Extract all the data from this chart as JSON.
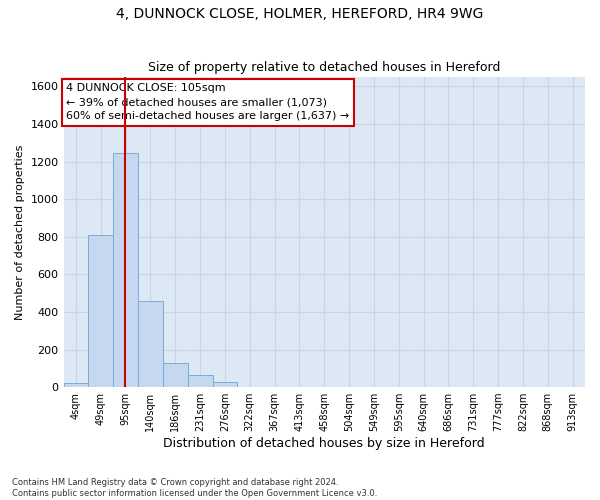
{
  "title_line1": "4, DUNNOCK CLOSE, HOLMER, HEREFORD, HR4 9WG",
  "title_line2": "Size of property relative to detached houses in Hereford",
  "xlabel": "Distribution of detached houses by size in Hereford",
  "ylabel": "Number of detached properties",
  "footnote": "Contains HM Land Registry data © Crown copyright and database right 2024.\nContains public sector information licensed under the Open Government Licence v3.0.",
  "bin_labels": [
    "4sqm",
    "49sqm",
    "95sqm",
    "140sqm",
    "186sqm",
    "231sqm",
    "276sqm",
    "322sqm",
    "367sqm",
    "413sqm",
    "458sqm",
    "504sqm",
    "549sqm",
    "595sqm",
    "640sqm",
    "686sqm",
    "731sqm",
    "777sqm",
    "822sqm",
    "868sqm",
    "913sqm"
  ],
  "bar_heights": [
    20,
    810,
    1245,
    460,
    130,
    63,
    25,
    0,
    0,
    0,
    0,
    0,
    0,
    0,
    0,
    0,
    0,
    0,
    0,
    0,
    0
  ],
  "bar_color": "#c5d8f0",
  "bar_edge_color": "#7aabda",
  "vline_x_index": 1.97,
  "vline_color": "#cc0000",
  "annotation_text": "4 DUNNOCK CLOSE: 105sqm\n← 39% of detached houses are smaller (1,073)\n60% of semi-detached houses are larger (1,637) →",
  "annotation_box_color": "#ffffff",
  "annotation_box_edge": "#cc0000",
  "ylim": [
    0,
    1650
  ],
  "yticks": [
    0,
    200,
    400,
    600,
    800,
    1000,
    1200,
    1400,
    1600
  ],
  "grid_color": "#c8d4e8",
  "background_color": "#dce8f4"
}
